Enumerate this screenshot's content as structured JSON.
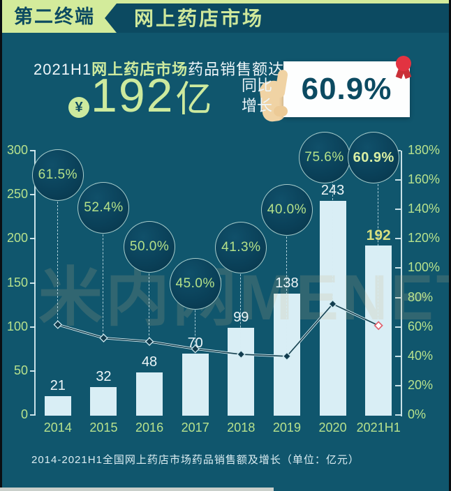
{
  "header": {
    "badge": "第二终端",
    "title": "网上药店市场"
  },
  "highlight": {
    "line1": {
      "prefix": "2021H1",
      "emphasis": "网上药店市场",
      "suffix": "药品销售额达"
    },
    "currency_symbol": "¥",
    "amount": "192",
    "unit": "亿",
    "yoy_line1": "同比",
    "yoy_line2": "增长",
    "yoy_value": "60.9%"
  },
  "watermark": "米内网MENET",
  "chart_data": {
    "type": "bar",
    "title": "2014-2021H1全国网上药店市场药品销售额及增长",
    "categories": [
      "2014",
      "2015",
      "2016",
      "2017",
      "2018",
      "2019",
      "2020",
      "2021H1"
    ],
    "series": [
      {
        "name": "药品销售额（亿元）",
        "type": "bar",
        "values": [
          21,
          32,
          48,
          70,
          99,
          138,
          243,
          192
        ]
      },
      {
        "name": "同比增长",
        "type": "line",
        "values": [
          61.5,
          52.4,
          50.0,
          45.0,
          41.3,
          40.0,
          75.6,
          60.9
        ]
      }
    ],
    "growth_labels": [
      "61.5%",
      "52.4%",
      "50.0%",
      "45.0%",
      "41.3%",
      "40.0%",
      "75.6%",
      "60.9%"
    ],
    "highlight_index": 7,
    "left_axis": {
      "min": 0,
      "max": 300,
      "ticks": [
        "300",
        "250",
        "200",
        "150",
        "100",
        "50",
        "0"
      ]
    },
    "right_axis": {
      "min": 0,
      "max": 180,
      "ticks": [
        "180%",
        "160%",
        "140%",
        "120%",
        "100%",
        "80%",
        "60%",
        "40%",
        "20%",
        "0%"
      ]
    },
    "grid": false,
    "legend": "none",
    "caption": "2014-2021H1全国网上药店市场药品销售额及增长（单位：亿元）"
  },
  "colors": {
    "background": "#10566d",
    "header_green": "#d3eb9b",
    "banner_dark": "#0c4a61",
    "accent_green": "#b7e28d",
    "amount_green": "#cdea9e",
    "bar_fill": "#d9eef5",
    "white_text": "#eef6f9",
    "value_highlight": "#d7df7e",
    "card_text": "#0c4a61",
    "medal_red": "#e23341",
    "last_marker_red": "#e0616e"
  }
}
